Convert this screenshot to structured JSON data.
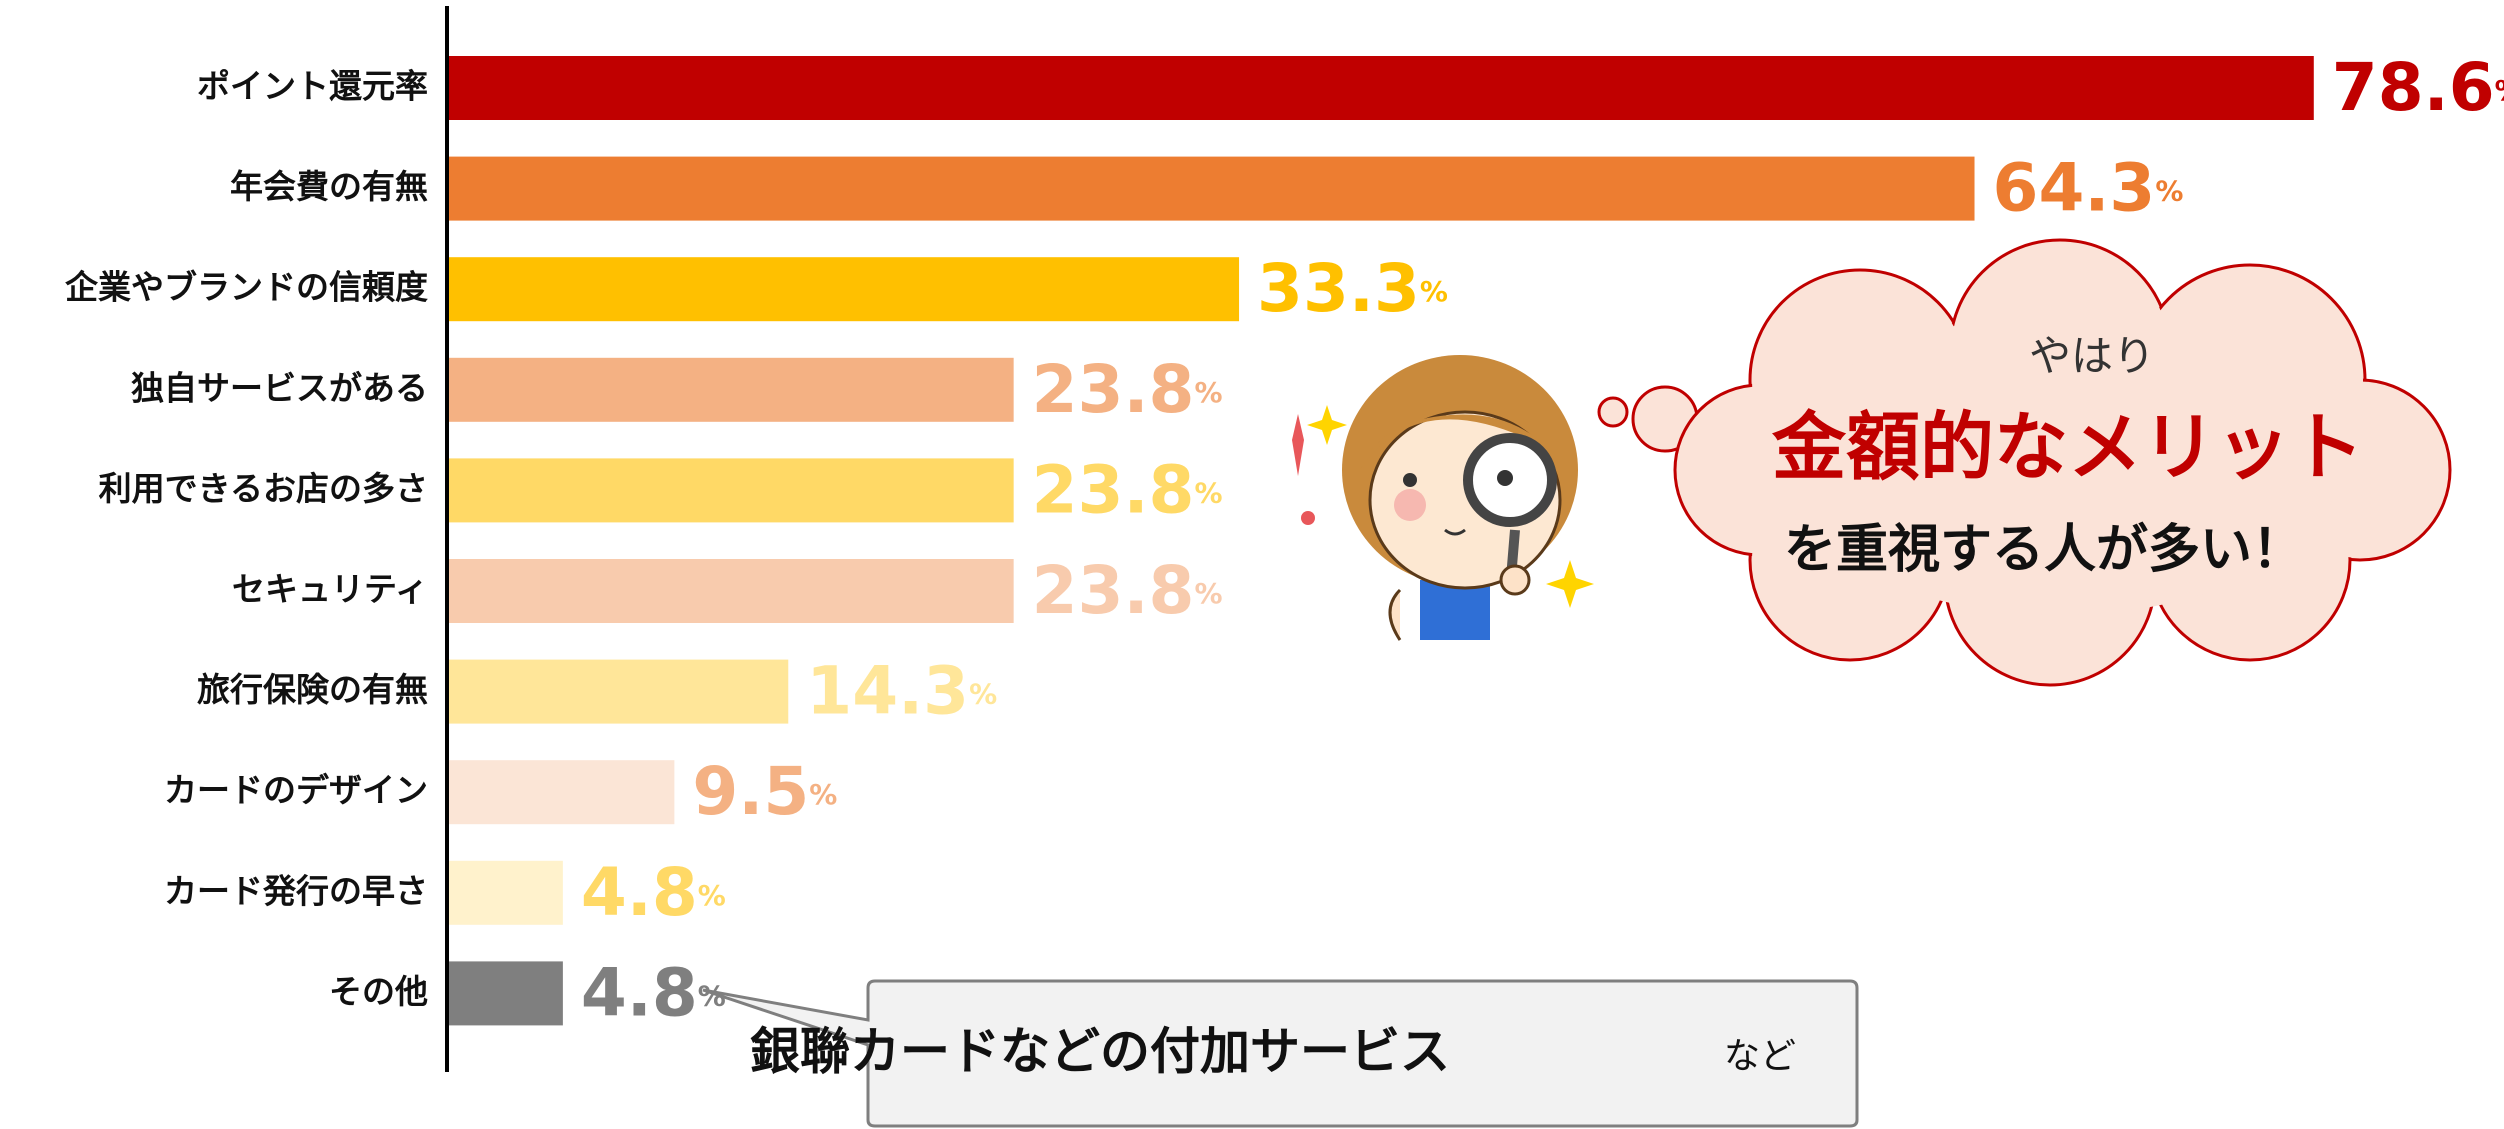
{
  "chart_data": {
    "type": "bar",
    "orientation": "horizontal",
    "categories": [
      "ポイント還元率",
      "年会費の有無",
      "企業やブランドの信頼度",
      "独自サービスがある",
      "利用できるお店の多さ",
      "セキュリティ",
      "旅行保険の有無",
      "カードのデザイン",
      "カード発行の早さ",
      "その他"
    ],
    "values": [
      78.6,
      64.3,
      33.3,
      23.8,
      23.8,
      23.8,
      14.3,
      9.5,
      4.8,
      4.8
    ],
    "value_unit": "%",
    "colors": [
      "#c00000",
      "#ed7d31",
      "#ffc000",
      "#f4b183",
      "#ffd966",
      "#f8cbad",
      "#ffe699",
      "#fbe5d6",
      "#fff2cc",
      "#7f7f7f"
    ],
    "value_label_colors": [
      "#c00000",
      "#ed7d31",
      "#ffc000",
      "#f4b183",
      "#ffd966",
      "#f8cbad",
      "#ffe699",
      "#f4b183",
      "#ffd966",
      "#7f7f7f"
    ],
    "xlim": [
      0,
      80
    ],
    "annotations": {
      "callout": "銀聯カードなどの付加サービス",
      "callout_suffix": "など",
      "cloud_line1": "やはり",
      "cloud_line2": "金額的なメリット",
      "cloud_line3": "を重視する人が多い！"
    }
  }
}
